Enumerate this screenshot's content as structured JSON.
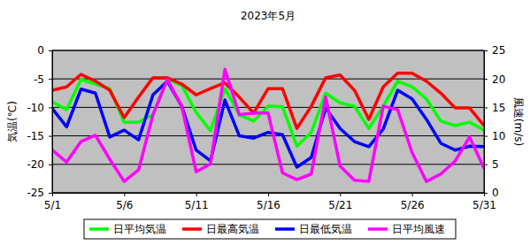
{
  "chart_data": {
    "type": "line",
    "title": "2023年5月",
    "y_label": "気温(℃)",
    "y2_label": "風速(m/s)",
    "categories": [
      "5/1",
      null,
      null,
      null,
      null,
      "5/6",
      null,
      null,
      null,
      null,
      "5/11",
      null,
      null,
      null,
      null,
      "5/16",
      null,
      null,
      null,
      null,
      "5/21",
      null,
      null,
      null,
      null,
      "5/26",
      null,
      null,
      null,
      null,
      "5/31"
    ],
    "ylim": [
      -25,
      0
    ],
    "yticks": [
      -25,
      -20,
      -15,
      -10,
      -5,
      0
    ],
    "y2lim": [
      0,
      25
    ],
    "y2ticks": [
      0,
      5,
      10,
      15,
      20,
      25
    ],
    "grid": true,
    "legend": "bottom",
    "series": [
      {
        "name": "日平均気温",
        "color": "#00ff00",
        "values": [
          -9,
          -10.4,
          -5.1,
          -5.9,
          -6.7,
          -12.6,
          -12.6,
          -11.3,
          -5.1,
          -6.1,
          -10.9,
          -14.1,
          -6.7,
          -11.3,
          -12.4,
          -9.8,
          -9.9,
          -16.8,
          -14.4,
          -7.5,
          -9.2,
          -9.8,
          -13.7,
          -9.8,
          -5.4,
          -6.4,
          -8.5,
          -12.4,
          -13.2,
          -12.6,
          -14
        ]
      },
      {
        "name": "日最高気温",
        "color": "#ff0000",
        "values": [
          -7,
          -6.4,
          -4.2,
          -5.4,
          -7,
          -11.8,
          -8.2,
          -4.8,
          -4.8,
          -5.9,
          -7.8,
          -6.7,
          -5.7,
          -8.2,
          -11,
          -6.7,
          -6.7,
          -13.7,
          -9.8,
          -4.8,
          -4.3,
          -7,
          -12.1,
          -6.4,
          -4,
          -4,
          -5.4,
          -7.5,
          -10.1,
          -10.1,
          -13.2
        ]
      },
      {
        "name": "日最低気温",
        "color": "#0000ff",
        "values": [
          -10.2,
          -13.4,
          -6.8,
          -7.5,
          -15.2,
          -14,
          -15.7,
          -7.8,
          -5.4,
          -9.8,
          -17.5,
          -19.4,
          -8.7,
          -15,
          -15.4,
          -14.4,
          -14.8,
          -20.5,
          -18.8,
          -10.1,
          -13.7,
          -16,
          -16.9,
          -13.8,
          -7,
          -8.5,
          -12.1,
          -16.3,
          -17.5,
          -16.8,
          -16.9
        ]
      },
      {
        "name": "日平均風速",
        "color": "#ff00ff",
        "axis": "y2",
        "values": [
          7.5,
          5.4,
          9,
          10.1,
          5.9,
          2,
          4,
          13.7,
          19.9,
          15.2,
          3.7,
          5.1,
          21.7,
          13.7,
          14,
          14,
          3.5,
          2.3,
          3.3,
          16.8,
          4.7,
          2.2,
          2,
          15.2,
          14.6,
          7.1,
          2,
          3.3,
          5.6,
          9.8,
          4.3
        ]
      }
    ]
  }
}
